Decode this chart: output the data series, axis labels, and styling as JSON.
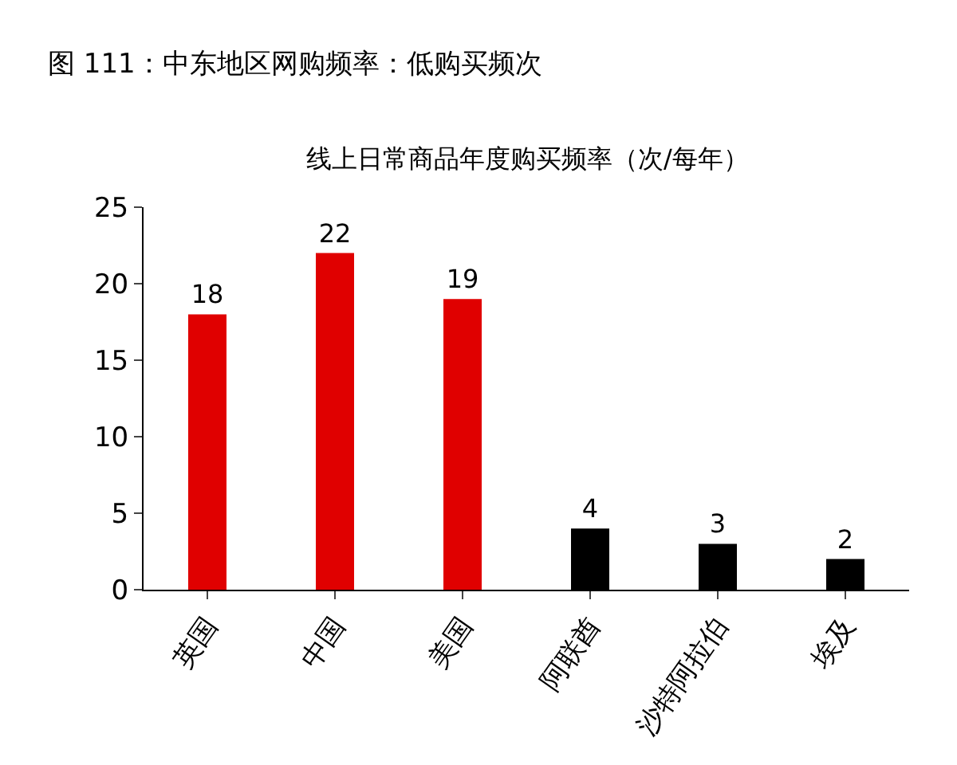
{
  "chart_data": {
    "type": "bar",
    "title": "图 111：中东地区网购频率：低购买频次",
    "subtitle": "线上日常商品年度购买频率（次/每年）",
    "categories": [
      "英国",
      "中国",
      "美国",
      "阿联酋",
      "沙特阿拉伯",
      "埃及"
    ],
    "values": [
      18,
      22,
      19,
      4,
      3,
      2
    ],
    "colors": [
      "#e00000",
      "#e00000",
      "#e00000",
      "#000000",
      "#000000",
      "#000000"
    ],
    "ylim": [
      0,
      25
    ],
    "yticks": [
      0,
      5,
      10,
      15,
      20,
      25
    ],
    "grid": false,
    "data_labels": true
  }
}
